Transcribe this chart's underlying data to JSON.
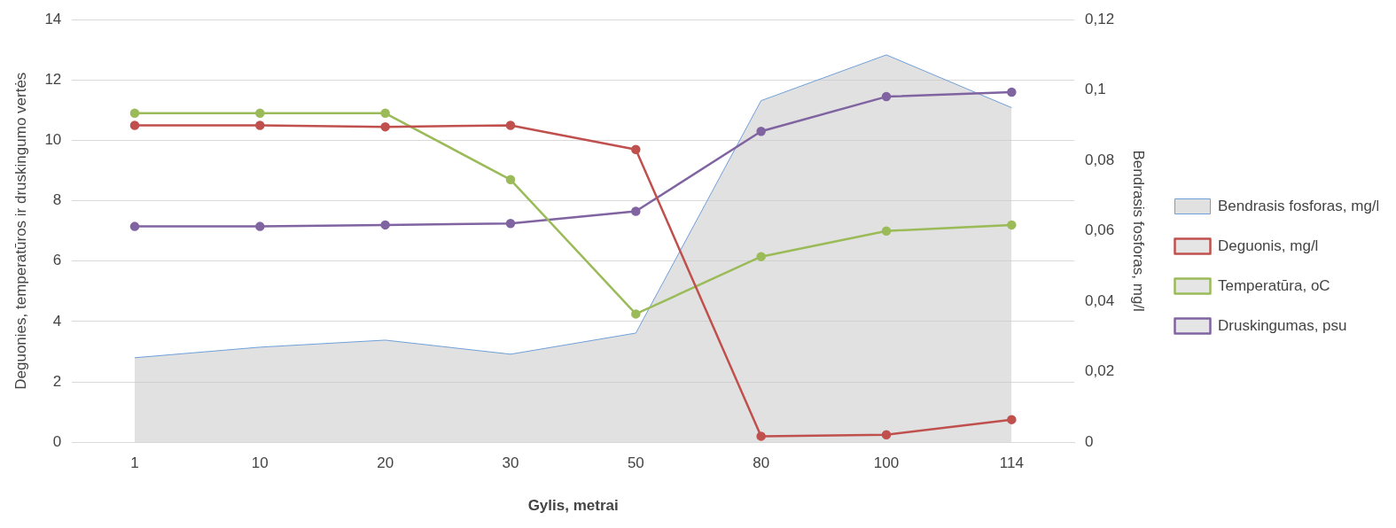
{
  "chart_data": {
    "type": "line",
    "xlabel": "Gylis, metrai",
    "ylabel": "Deguonies, temperatūros ir druskingumo vertės",
    "y2label": "Bendrasis fosforas, mg/l",
    "categories": [
      "1",
      "10",
      "20",
      "30",
      "50",
      "80",
      "100",
      "114"
    ],
    "series": [
      {
        "name": "Bendrasis fosforas, mg/l",
        "type": "area",
        "marker": "none",
        "axis": "y2",
        "color": "#6f9fd8",
        "values": [
          0.024,
          0.027,
          0.029,
          0.025,
          0.031,
          0.097,
          0.11,
          0.095
        ]
      },
      {
        "name": "Deguonis, mg/l",
        "color": "#c0504d",
        "values": [
          10.5,
          10.5,
          10.45,
          10.5,
          9.7,
          0.2,
          0.25,
          0.75
        ]
      },
      {
        "name": "Temperatūra, oC",
        "color": "#9bbb59",
        "values": [
          10.9,
          10.9,
          10.9,
          8.7,
          4.25,
          6.15,
          7.0,
          7.2
        ]
      },
      {
        "name": "Druskingumas, psu",
        "color": "#8064a2",
        "values": [
          7.15,
          7.15,
          7.2,
          7.25,
          7.65,
          10.3,
          11.45,
          11.6
        ]
      }
    ],
    "ylim": [
      0,
      14
    ],
    "yticks": [
      0,
      2,
      4,
      6,
      8,
      10,
      12,
      14
    ],
    "y2lim": [
      0,
      0.12
    ],
    "y2ticks": [
      {
        "value": 0,
        "label": "0"
      },
      {
        "value": 0.02,
        "label": "0,02"
      },
      {
        "value": 0.04,
        "label": "0,04"
      },
      {
        "value": 0.06,
        "label": "0,06"
      },
      {
        "value": 0.08,
        "label": "0,08"
      },
      {
        "value": 0.1,
        "label": "0,1"
      },
      {
        "value": 0.12,
        "label": "0,12"
      }
    ],
    "grid": "y",
    "legend": "right",
    "marker": "circle",
    "line_style": "solid"
  }
}
